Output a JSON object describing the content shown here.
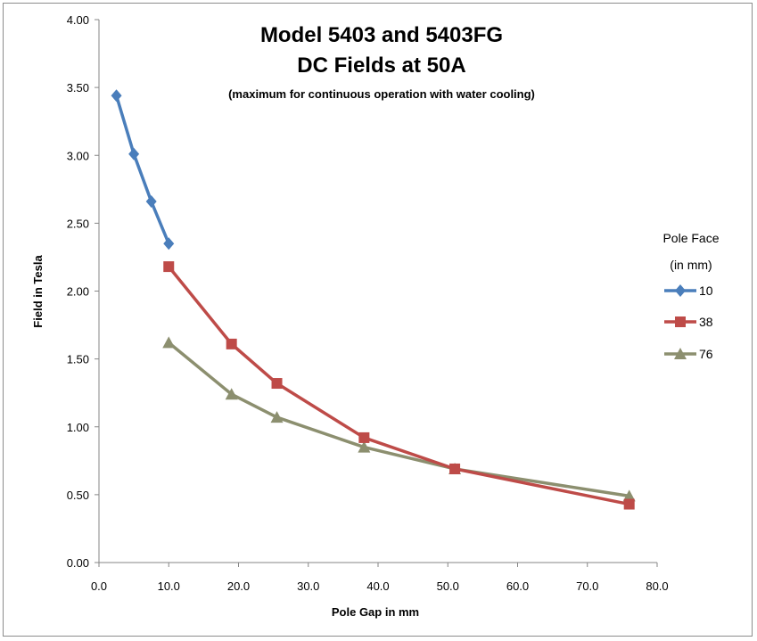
{
  "chart_data": {
    "type": "line",
    "title": "Model 5403 and 5403FG",
    "subtitle": "DC Fields at 50A",
    "note": "(maximum for continuous operation with water cooling)",
    "xlabel": "Pole Gap in mm",
    "ylabel": "Field in Tesla",
    "xlim": [
      0,
      80
    ],
    "ylim": [
      0,
      4
    ],
    "x_ticks": [
      "0.0",
      "10.0",
      "20.0",
      "30.0",
      "40.0",
      "50.0",
      "60.0",
      "70.0",
      "80.0"
    ],
    "y_ticks": [
      "0.00",
      "0.50",
      "1.00",
      "1.50",
      "2.00",
      "2.50",
      "3.00",
      "3.50",
      "4.00"
    ],
    "grid": false,
    "legend_title": [
      "Pole Face",
      "(in mm)"
    ],
    "legend_position": "right",
    "series": [
      {
        "name": "10",
        "color": "#4a7ebb",
        "marker": "diamond",
        "x": [
          2.5,
          5.0,
          7.5,
          10.0
        ],
        "y": [
          3.44,
          3.01,
          2.66,
          2.35
        ]
      },
      {
        "name": "38",
        "color": "#be4b48",
        "marker": "square",
        "x": [
          10.0,
          19.0,
          25.5,
          38.0,
          51.0,
          76.0
        ],
        "y": [
          2.18,
          1.61,
          1.32,
          0.92,
          0.69,
          0.43
        ]
      },
      {
        "name": "76",
        "color": "#8c8f6f",
        "marker": "triangle",
        "x": [
          10.0,
          19.0,
          25.5,
          38.0,
          51.0,
          76.0
        ],
        "y": [
          1.62,
          1.24,
          1.07,
          0.85,
          0.69,
          0.49
        ]
      }
    ]
  }
}
